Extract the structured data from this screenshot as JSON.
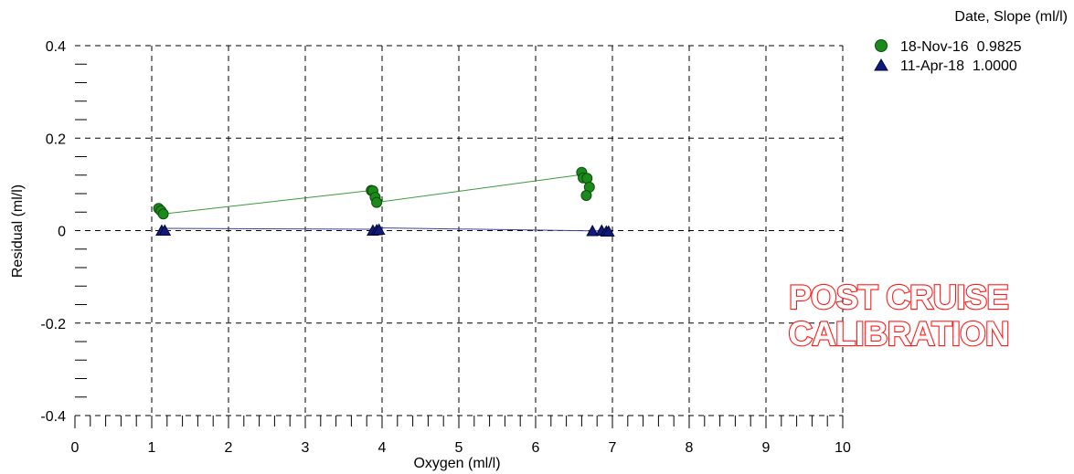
{
  "chart_data": {
    "type": "scatter",
    "xlabel": "Oxygen (ml/l)",
    "ylabel": "Residual (ml/l)",
    "xlim": [
      0,
      10
    ],
    "ylim": [
      -0.4,
      0.4
    ],
    "x_ticks": [
      "0",
      "1",
      "2",
      "3",
      "4",
      "5",
      "6",
      "7",
      "8",
      "9",
      "10"
    ],
    "y_ticks": [
      {
        "value": 0.4,
        "label": "0.4"
      },
      {
        "value": 0.2,
        "label": "0.2"
      },
      {
        "value": 0,
        "label": "0"
      },
      {
        "value": -0.2,
        "label": "-0.2"
      },
      {
        "value": -0.4,
        "label": "-0.4"
      }
    ],
    "grid": true,
    "legend_title": "Date, Slope (ml/l)",
    "legend_position": "top-right",
    "annotation": [
      "POST CRUISE",
      "CALIBRATION"
    ],
    "series": [
      {
        "name": "18-Nov-16  0.9825",
        "marker": "circle",
        "color": "#1a8a1a",
        "points": [
          {
            "x": 1.09,
            "y": 0.048
          },
          {
            "x": 1.12,
            "y": 0.043
          },
          {
            "x": 1.15,
            "y": 0.036
          },
          {
            "x": 3.86,
            "y": 0.087
          },
          {
            "x": 3.88,
            "y": 0.086
          },
          {
            "x": 3.91,
            "y": 0.072
          },
          {
            "x": 3.93,
            "y": 0.061
          },
          {
            "x": 6.6,
            "y": 0.126
          },
          {
            "x": 6.62,
            "y": 0.114
          },
          {
            "x": 6.67,
            "y": 0.113
          },
          {
            "x": 6.7,
            "y": 0.094
          },
          {
            "x": 6.66,
            "y": 0.076
          }
        ],
        "fit_line": [
          {
            "x": 1.15,
            "y": 0.036
          },
          {
            "x": 3.86,
            "y": 0.087
          },
          {
            "x": 3.93,
            "y": 0.061
          },
          {
            "x": 6.6,
            "y": 0.121
          }
        ]
      },
      {
        "name": "11-Apr-18  1.0000",
        "marker": "triangle",
        "color": "#101a78",
        "points": [
          {
            "x": 1.13,
            "y": 0.0
          },
          {
            "x": 1.17,
            "y": 0.0
          },
          {
            "x": 3.88,
            "y": 0.0
          },
          {
            "x": 3.93,
            "y": 0.001
          },
          {
            "x": 3.96,
            "y": 0.002
          },
          {
            "x": 6.74,
            "y": -0.001
          },
          {
            "x": 6.86,
            "y": 0.0
          },
          {
            "x": 6.92,
            "y": -0.002
          },
          {
            "x": 6.95,
            "y": -0.002
          }
        ],
        "fit_line": [
          {
            "x": 1.13,
            "y": 0.005
          },
          {
            "x": 3.93,
            "y": 0.003
          },
          {
            "x": 3.96,
            "y": 0.006
          },
          {
            "x": 6.95,
            "y": -0.001
          }
        ]
      }
    ]
  }
}
